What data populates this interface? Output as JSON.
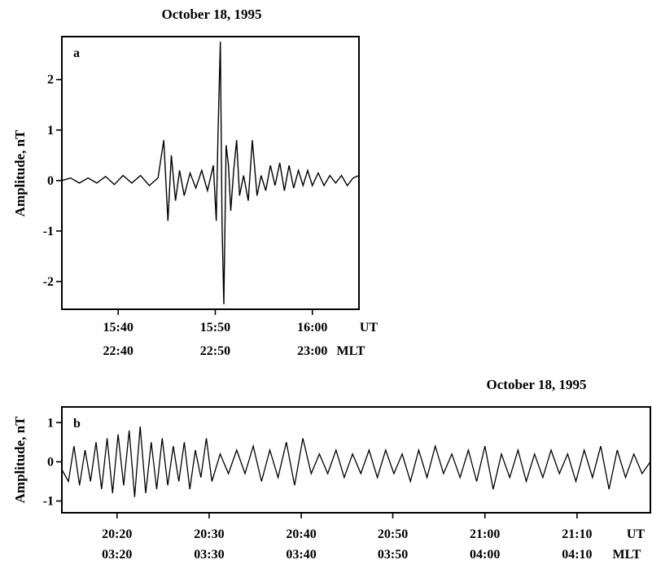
{
  "chart_data": [
    {
      "type": "line",
      "panel_label": "a",
      "title": "October 18, 1995",
      "ylabel": "Amplitude, nT",
      "ylim": [
        -2.55,
        2.85
      ],
      "yticks": [
        2,
        1,
        0,
        -1,
        -2
      ],
      "ytick_labels": [
        "2",
        "1",
        "0",
        "-1",
        "-2"
      ],
      "xlim": [
        15.57,
        16.08
      ],
      "xticks": [
        15.6667,
        15.8333,
        16.0
      ],
      "xtick_labels_ut": [
        "15:40",
        "15:50",
        "16:00"
      ],
      "xtick_labels_mlt": [
        "22:40",
        "22:50",
        "23:00"
      ],
      "x_units": [
        "UT",
        "MLT"
      ],
      "grid": false,
      "series": [
        {
          "sampling": "waveform (tenths of an hour UT vs nT), read from plot",
          "x": [
            15.57,
            15.585,
            15.6,
            15.615,
            15.63,
            15.645,
            15.66,
            15.675,
            15.69,
            15.705,
            15.72,
            15.735,
            15.745,
            15.752,
            15.758,
            15.765,
            15.772,
            15.78,
            15.79,
            15.8,
            15.81,
            15.82,
            15.83,
            15.835,
            15.838,
            15.842,
            15.845,
            15.848,
            15.852,
            15.856,
            15.86,
            15.865,
            15.87,
            15.875,
            15.882,
            15.89,
            15.897,
            15.905,
            15.912,
            15.92,
            15.928,
            15.936,
            15.944,
            15.952,
            15.96,
            15.968,
            15.976,
            15.984,
            15.992,
            16.0,
            16.01,
            16.02,
            16.03,
            16.04,
            16.05,
            16.06,
            16.07,
            16.08
          ],
          "values": [
            0.0,
            0.05,
            -0.05,
            0.05,
            -0.05,
            0.08,
            -0.08,
            0.1,
            -0.05,
            0.1,
            -0.1,
            0.05,
            0.8,
            -0.8,
            0.5,
            -0.4,
            0.2,
            -0.3,
            0.15,
            -0.15,
            0.2,
            -0.2,
            0.3,
            -0.8,
            0.9,
            2.75,
            -0.9,
            -2.45,
            0.7,
            0.3,
            -0.6,
            0.2,
            0.8,
            -0.3,
            0.1,
            -0.4,
            0.8,
            -0.3,
            0.1,
            -0.2,
            0.3,
            -0.1,
            0.35,
            -0.2,
            0.3,
            -0.15,
            0.2,
            -0.1,
            0.2,
            -0.1,
            0.15,
            -0.1,
            0.1,
            -0.05,
            0.1,
            -0.1,
            0.05,
            0.1
          ]
        }
      ]
    },
    {
      "type": "line",
      "panel_label": "b",
      "title": "October 18, 1995",
      "ylabel": "Amplitude, nT",
      "ylim": [
        -1.3,
        1.4
      ],
      "yticks": [
        1,
        0,
        -1
      ],
      "ytick_labels": [
        "1",
        "0",
        "-1"
      ],
      "xlim": [
        20.233,
        21.3
      ],
      "xticks": [
        20.333,
        20.5,
        20.667,
        20.833,
        21.0,
        21.167
      ],
      "xtick_labels_ut": [
        "20:20",
        "20:30",
        "20:40",
        "20:50",
        "21:00",
        "21:10"
      ],
      "xtick_labels_mlt": [
        "03:20",
        "03:30",
        "03:40",
        "03:50",
        "04:00",
        "04:10"
      ],
      "x_units": [
        "UT",
        "MLT"
      ],
      "grid": false,
      "series": [
        {
          "sampling": "waveform (hours UT vs nT), read from plot",
          "x": [
            20.233,
            20.245,
            20.255,
            20.265,
            20.275,
            20.285,
            20.295,
            20.305,
            20.315,
            20.325,
            20.335,
            20.345,
            20.355,
            20.365,
            20.375,
            20.385,
            20.395,
            20.405,
            20.415,
            20.425,
            20.435,
            20.445,
            20.455,
            20.465,
            20.475,
            20.485,
            20.495,
            20.505,
            20.52,
            20.535,
            20.55,
            20.565,
            20.58,
            20.595,
            20.61,
            20.625,
            20.64,
            20.655,
            20.67,
            20.685,
            20.7,
            20.715,
            20.73,
            20.745,
            20.76,
            20.775,
            20.79,
            20.805,
            20.82,
            20.835,
            20.85,
            20.865,
            20.88,
            20.895,
            20.91,
            20.925,
            20.94,
            20.955,
            20.97,
            20.985,
            21.0,
            21.015,
            21.03,
            21.045,
            21.06,
            21.075,
            21.09,
            21.105,
            21.12,
            21.135,
            21.15,
            21.165,
            21.18,
            21.195,
            21.21,
            21.225,
            21.24,
            21.255,
            21.27,
            21.285,
            21.3
          ],
          "values": [
            -0.2,
            -0.5,
            0.4,
            -0.6,
            0.3,
            -0.5,
            0.5,
            -0.7,
            0.6,
            -0.8,
            0.7,
            -0.6,
            0.8,
            -0.9,
            0.9,
            -0.8,
            0.5,
            -0.7,
            0.6,
            -0.6,
            0.4,
            -0.5,
            0.5,
            -0.7,
            0.3,
            -0.4,
            0.6,
            -0.5,
            0.2,
            -0.3,
            0.3,
            -0.3,
            0.4,
            -0.5,
            0.3,
            -0.4,
            0.5,
            -0.6,
            0.6,
            -0.3,
            0.2,
            -0.3,
            0.3,
            -0.4,
            0.2,
            -0.3,
            0.3,
            -0.4,
            0.3,
            -0.3,
            0.2,
            -0.5,
            0.3,
            -0.4,
            0.4,
            -0.3,
            0.2,
            -0.4,
            0.3,
            -0.5,
            0.4,
            -0.7,
            0.2,
            -0.4,
            0.3,
            -0.5,
            0.2,
            -0.4,
            0.3,
            -0.3,
            0.2,
            -0.5,
            0.3,
            -0.4,
            0.4,
            -0.7,
            0.3,
            -0.4,
            0.2,
            -0.3,
            0.0
          ]
        }
      ]
    }
  ]
}
